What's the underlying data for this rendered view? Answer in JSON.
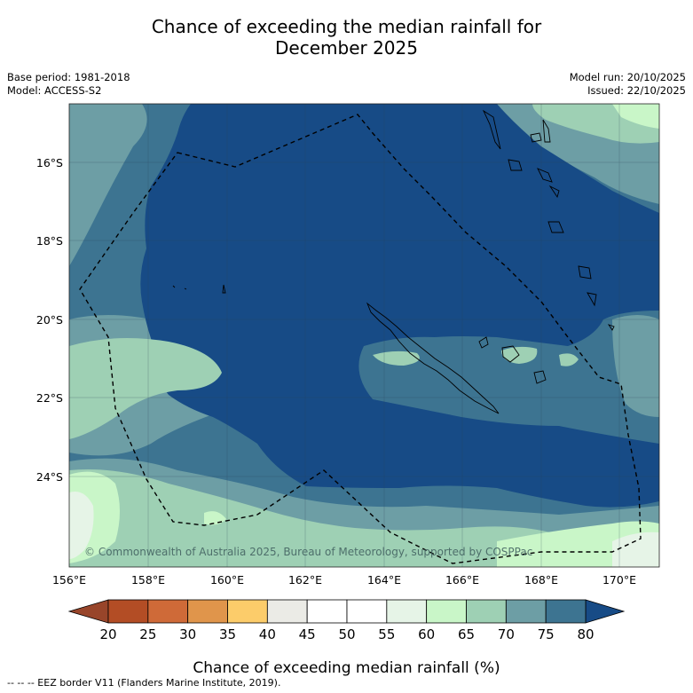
{
  "title_line1": "Chance of exceeding the median rainfall for",
  "title_line2": "December 2025",
  "meta": {
    "base_period": "Base period: 1981-2018",
    "model": "Model: ACCESS-S2",
    "model_run": "Model run: 20/10/2025",
    "issued": "Issued: 22/10/2025"
  },
  "axes": {
    "lat_ticks": [
      "16°S",
      "18°S",
      "20°S",
      "22°S",
      "24°S"
    ],
    "lon_ticks": [
      "156°E",
      "158°E",
      "160°E",
      "162°E",
      "164°E",
      "166°E",
      "168°E",
      "170°E"
    ]
  },
  "watermark": "© Commonwealth of Australia 2025, Bureau of Meteorology, supported by COSPPac",
  "colorbar": {
    "tick_labels": [
      "20",
      "25",
      "30",
      "35",
      "40",
      "45",
      "50",
      "55",
      "60",
      "65",
      "70",
      "75",
      "80"
    ],
    "colors": [
      "#b34d25",
      "#cf6a38",
      "#e0954b",
      "#fccc6a",
      "#ebebe6",
      "#ffffff",
      "#ffffff",
      "#e6f4e7",
      "#c9f6c8",
      "#9ed0b4",
      "#6d9ea5",
      "#3d7491"
    ],
    "low_extend_color": "#98452a",
    "high_extend_color": "#174b86",
    "label": "Chance of exceeding median rainfall (%)"
  },
  "legend_footer": "--  --  -- EEZ border V11 (Flanders Marine Institute, 2019).",
  "map_colors": {
    "class_80_plus": "#174b86",
    "class_75_80": "#3d7491",
    "class_70_75": "#6d9ea5",
    "class_65_70": "#9ed0b4",
    "class_60_65": "#c9f6c8",
    "class_55_60": "#e6f4e7"
  }
}
